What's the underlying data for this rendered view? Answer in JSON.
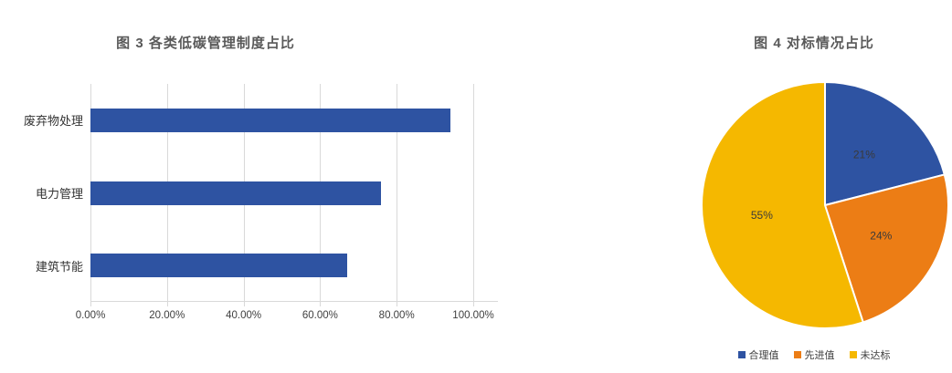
{
  "colors": {
    "title_gray": "#595959",
    "tick_label_gray": "#404040",
    "grid_gray": "#d9d9d9",
    "bar_blue": "#2e53a2",
    "pie_blue": "#2e53a2",
    "pie_orange": "#ec7d15",
    "pie_gold": "#f5b800",
    "pie_separator": "#ffffff",
    "pie_label_color": "#3a3a3a"
  },
  "chart_data": [
    {
      "type": "bar",
      "orientation": "horizontal",
      "title": "图 3  各类低碳管理制度占比",
      "categories": [
        "废弃物处理",
        "电力管理",
        "建筑节能"
      ],
      "values": [
        94,
        76,
        67
      ],
      "value_unit": "%",
      "xlim": [
        0,
        100
      ],
      "x_tick_values": [
        0,
        20,
        40,
        60,
        80,
        100
      ],
      "x_tick_labels": [
        "0.00%",
        "20.00%",
        "40.00%",
        "60.00%",
        "80.00%",
        "100.00%"
      ],
      "grid": true,
      "bar_color": "#2e53a2",
      "legend": "none"
    },
    {
      "type": "pie",
      "title": "图 4  对标情况占比",
      "labels": [
        "合理值",
        "先进值",
        "未达标"
      ],
      "values": [
        21,
        24,
        55
      ],
      "data_labels": [
        "21%",
        "24%",
        "55%"
      ],
      "colors": [
        "#2e53a2",
        "#ec7d15",
        "#f5b800"
      ],
      "start_angle_deg": 0,
      "direction": "clockwise",
      "legend_position": "bottom",
      "legend_labels": [
        "合理值",
        "先进值",
        "未达标"
      ]
    }
  ]
}
